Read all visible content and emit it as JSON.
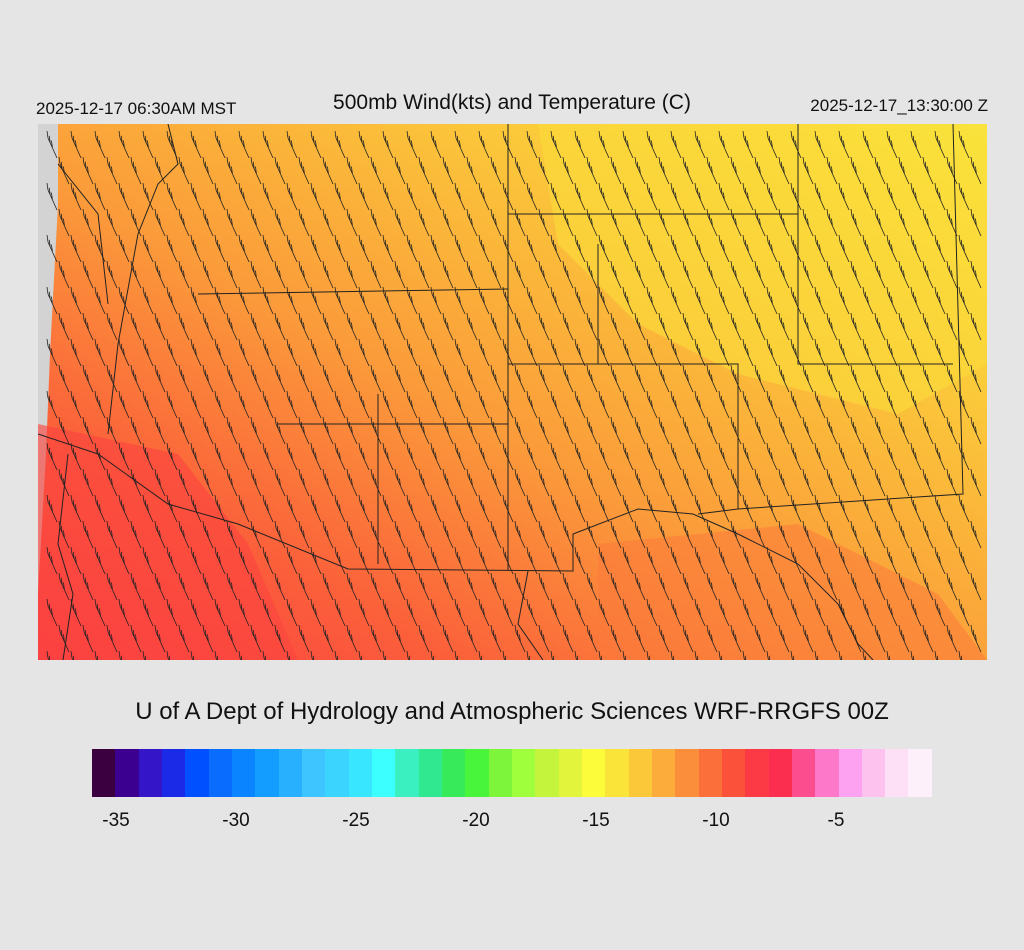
{
  "header": {
    "local_time": "2025-12-17 06:30AM MST",
    "title": "500mb Wind(kts) and Temperature (C)",
    "valid_time": "2025-12-17_13:30:00 Z"
  },
  "credit": "U of A Dept of Hydrology and Atmospheric Sciences WRF-RRGFS 00Z",
  "colorbar": {
    "min": -36,
    "max": -1,
    "colors": [
      "#3a0040",
      "#3c0090",
      "#3515c8",
      "#1a2ae6",
      "#0050ff",
      "#0a6cff",
      "#0a85ff",
      "#129dff",
      "#28b0ff",
      "#3ec4ff",
      "#3ad4ff",
      "#38e6ff",
      "#3cffff",
      "#3af0c0",
      "#30e890",
      "#36ea5a",
      "#48f53a",
      "#7cf53a",
      "#a0ff3c",
      "#c4f53c",
      "#e2f53c",
      "#fcfc3a",
      "#fbe43a",
      "#fbc83a",
      "#fbac3a",
      "#fb8e3a",
      "#fb703a",
      "#fb503a",
      "#fb3a46",
      "#fb2e50",
      "#fc4d8e",
      "#fd78c8",
      "#fda2f0",
      "#fdc2ee",
      "#fde0f6",
      "#fef0fa"
    ],
    "tick_labels": [
      "-35",
      "-30",
      "-25",
      "-20",
      "-15",
      "-10",
      "-5"
    ],
    "tick_values": [
      -35,
      -30,
      -25,
      -20,
      -15,
      -10,
      -5
    ]
  },
  "map_field": {
    "variable": "Temperature (C)",
    "barb_units": "kts",
    "field_colors": {
      "west": "#fb503a",
      "mid": "#fb8e3a",
      "east": "#fbc83a",
      "northeast": "#fcfc3a"
    }
  }
}
